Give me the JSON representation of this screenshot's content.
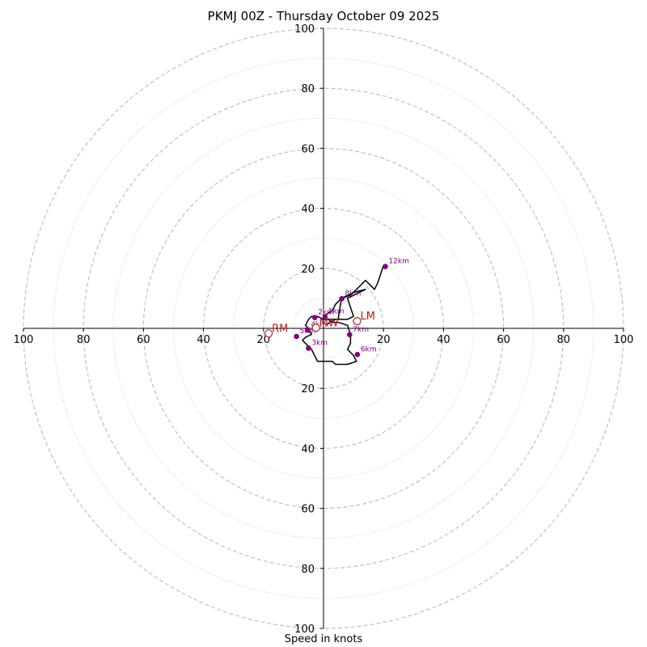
{
  "chart_data": {
    "type": "scatter",
    "subtype": "hodograph",
    "title": "PKMJ 00Z - Thursday October 09 2025",
    "xlabel": "Speed in knots",
    "ylabel": "",
    "xlim": [
      -100,
      100
    ],
    "ylim": [
      -100,
      100
    ],
    "ring_speeds_major": [
      20,
      40,
      60,
      80,
      100
    ],
    "ring_speeds_minor": [
      10,
      30,
      50,
      70,
      90
    ],
    "x_tick_labels": [
      "100",
      "80",
      "60",
      "40",
      "20",
      "20",
      "40",
      "60",
      "80",
      "100"
    ],
    "x_tick_values": [
      -100,
      -80,
      -60,
      -40,
      -20,
      20,
      40,
      60,
      80,
      100
    ],
    "y_tick_labels": [
      "100",
      "80",
      "60",
      "40",
      "20",
      "20",
      "40",
      "60",
      "80",
      "100"
    ],
    "y_tick_values": [
      100,
      80,
      60,
      40,
      20,
      -20,
      -40,
      -60,
      -80,
      -100
    ],
    "hodograph_trace": {
      "u": [
        1,
        2,
        4,
        6,
        8,
        10,
        9,
        8,
        12,
        14,
        10,
        6,
        4,
        3,
        0,
        3,
        5,
        8,
        9,
        9,
        8,
        10,
        11,
        8,
        4,
        3,
        -2,
        -4,
        -7,
        -6,
        -4,
        -5,
        -6,
        -5,
        -4,
        -3,
        -2,
        0,
        4,
        5,
        5,
        6,
        9,
        12,
        14,
        17,
        18,
        20
      ],
      "v": [
        1,
        2,
        3,
        3,
        3,
        4,
        7,
        10,
        12,
        13,
        12,
        10,
        8,
        6,
        4,
        2,
        2,
        1,
        -2,
        -5,
        -7,
        -9,
        -11,
        -12,
        -12,
        -11,
        -11,
        -7,
        -4,
        -3,
        -2,
        0,
        1,
        3,
        4,
        4,
        4,
        3,
        3,
        3,
        4,
        10,
        11,
        14,
        16,
        13,
        15,
        21
      ]
    },
    "height_markers": [
      {
        "label": "1km",
        "u": 0.5,
        "v": 3.9
      },
      {
        "label": "2km",
        "u": -2.9,
        "v": 3.6
      },
      {
        "label": "3km",
        "u": -5.0,
        "v": -6.6
      },
      {
        "label": "6km",
        "u": 11.3,
        "v": -8.7
      },
      {
        "label": "7km",
        "u": 8.7,
        "v": -2.1
      },
      {
        "label": "8km",
        "u": 6.1,
        "v": 9.9
      },
      {
        "label": "12km",
        "u": 20.6,
        "v": 20.6
      },
      {
        "label": "5km",
        "u": -9.0,
        "v": -2.7
      },
      {
        "label": "4km",
        "u": -5.3,
        "v": -0.5
      }
    ],
    "storm_motion": [
      {
        "label": "RM",
        "u": -18.3,
        "v": -1.7
      },
      {
        "label": "LM",
        "u": 11.2,
        "v": 2.4
      },
      {
        "label": "MW",
        "u": -2.5,
        "v": 0.2
      }
    ],
    "colors": {
      "trace": "#000000",
      "markers": "#800080",
      "storm_motion": "#b22222",
      "grid_major": "#bbbbbb",
      "grid_minor": "#cccccc",
      "axes": "#000000"
    }
  }
}
